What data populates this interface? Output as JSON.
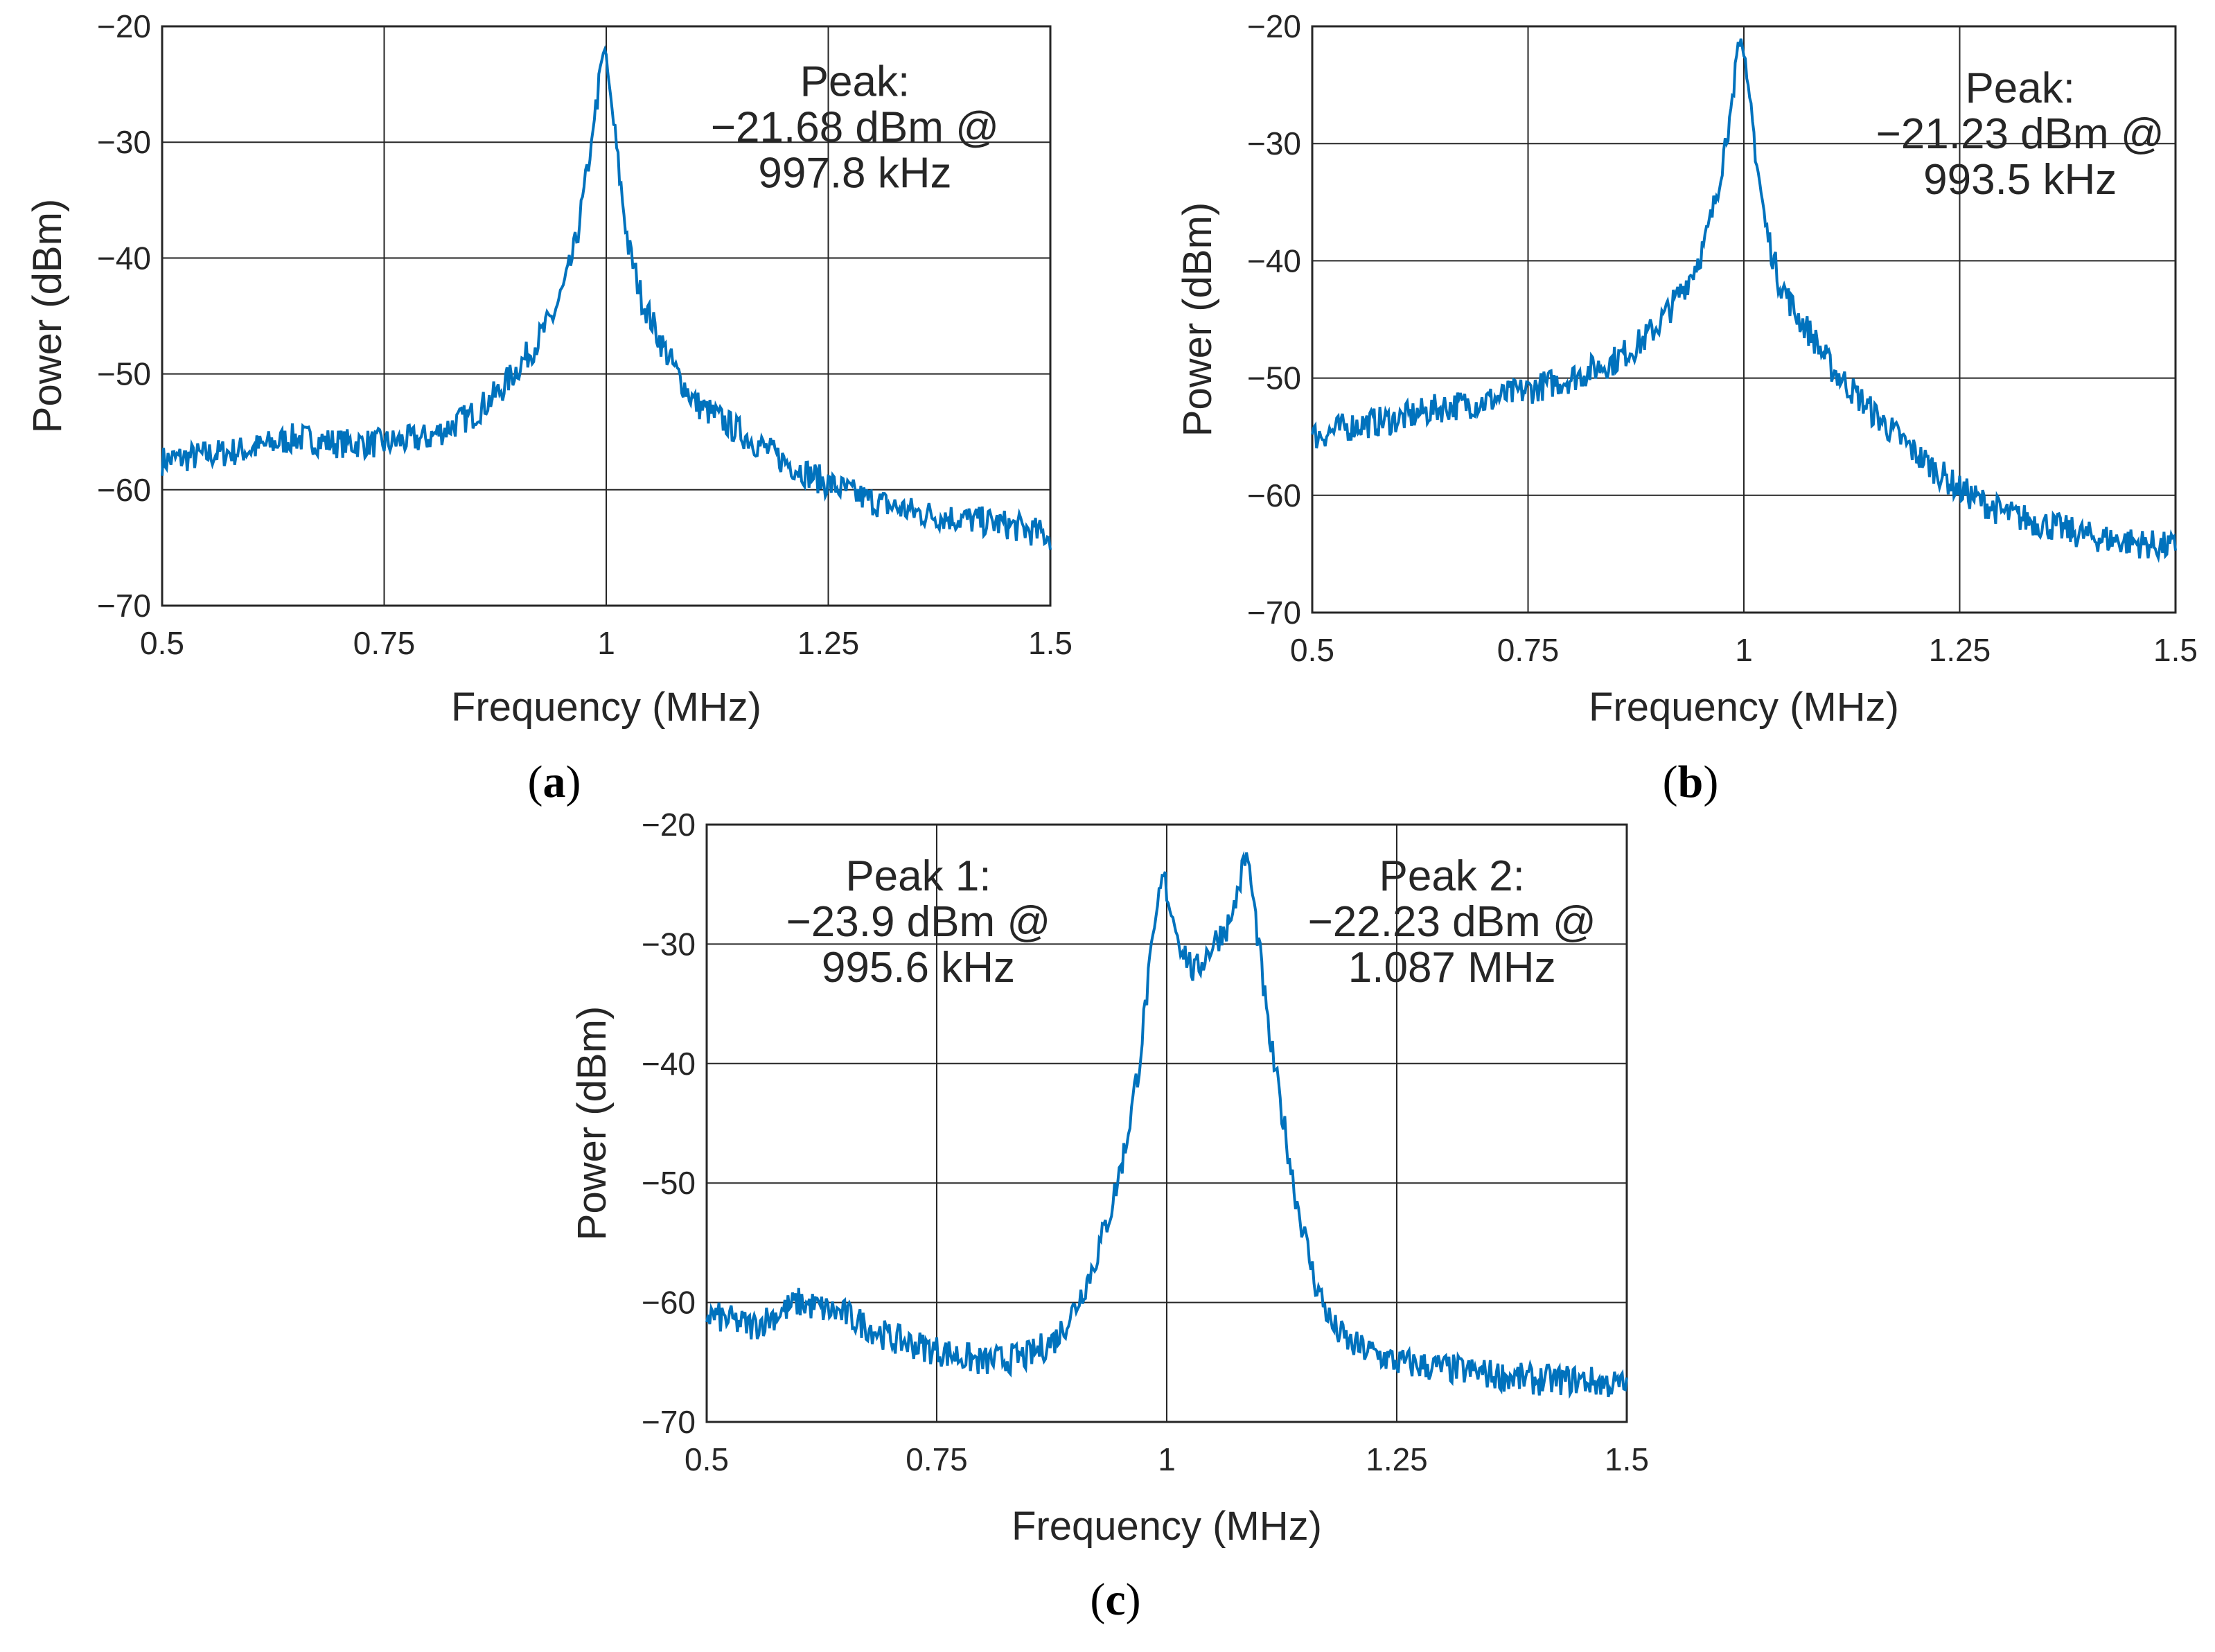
{
  "colors": {
    "series": "#0072BD",
    "grid": "#262626",
    "axis": "#262626"
  },
  "chart_data": [
    {
      "id": "a",
      "type": "line",
      "caption": "a",
      "xlabel": "Frequency (MHz)",
      "ylabel": "Power (dBm)",
      "xlim": [
        0.5,
        1.5
      ],
      "ylim": [
        -70,
        -20
      ],
      "xticks": [
        0.5,
        0.75,
        1,
        1.25,
        1.5
      ],
      "xticklabels": [
        "0.5",
        "0.75",
        "1",
        "1.25",
        "1.5"
      ],
      "yticks": [
        -20,
        -30,
        -40,
        -50,
        -60,
        -70
      ],
      "yticklabels": [
        "−20",
        "−30",
        "−40",
        "−50",
        "−60",
        "−70"
      ],
      "grid": true,
      "annotation": [
        "Peak:",
        "−21.68 dBm @",
        "997.8 kHz"
      ],
      "annotation_anchor": [
        1.28,
        -26
      ],
      "series": [
        {
          "name": "spectrum",
          "x": [
            0.5,
            0.55,
            0.6,
            0.65,
            0.7,
            0.75,
            0.8,
            0.85,
            0.88,
            0.9,
            0.92,
            0.94,
            0.955,
            0.965,
            0.975,
            0.985,
            0.9978,
            1.005,
            1.015,
            1.025,
            1.04,
            1.06,
            1.08,
            1.1,
            1.15,
            1.2,
            1.25,
            1.3,
            1.35,
            1.4,
            1.45,
            1.5
          ],
          "values": [
            -57.5,
            -57.0,
            -56.5,
            -55.5,
            -56.0,
            -56.0,
            -55.5,
            -53.5,
            -51.5,
            -49.5,
            -47.5,
            -45.0,
            -42.0,
            -39.0,
            -34.5,
            -29.0,
            -21.68,
            -26.0,
            -33.0,
            -39.0,
            -43.5,
            -47.0,
            -50.0,
            -52.5,
            -55.0,
            -57.5,
            -59.5,
            -61.0,
            -62.0,
            -62.5,
            -63.0,
            -64.0
          ]
        }
      ]
    },
    {
      "id": "b",
      "type": "line",
      "caption": "b",
      "xlabel": "Frequency (MHz)",
      "ylabel": "Power (dBm)",
      "xlim": [
        0.5,
        1.5
      ],
      "ylim": [
        -70,
        -20
      ],
      "xticks": [
        0.5,
        0.75,
        1,
        1.25,
        1.5
      ],
      "xticklabels": [
        "0.5",
        "0.75",
        "1",
        "1.25",
        "1.5"
      ],
      "yticks": [
        -20,
        -30,
        -40,
        -50,
        -60,
        -70
      ],
      "yticklabels": [
        "−20",
        "−30",
        "−40",
        "−50",
        "−60",
        "−70"
      ],
      "grid": true,
      "annotation": [
        "Peak:",
        "−21.23 dBm @",
        "993.5 kHz"
      ],
      "annotation_anchor": [
        1.32,
        -26.5
      ],
      "series": [
        {
          "name": "spectrum",
          "x": [
            0.5,
            0.55,
            0.6,
            0.65,
            0.7,
            0.75,
            0.8,
            0.85,
            0.88,
            0.9,
            0.92,
            0.94,
            0.955,
            0.965,
            0.975,
            0.985,
            0.9935,
            1.005,
            1.015,
            1.025,
            1.04,
            1.06,
            1.08,
            1.1,
            1.15,
            1.2,
            1.25,
            1.3,
            1.35,
            1.4,
            1.45,
            1.5
          ],
          "values": [
            -55.0,
            -54.0,
            -53.5,
            -52.5,
            -52.0,
            -51.0,
            -50.0,
            -48.5,
            -47.0,
            -45.5,
            -43.5,
            -41.0,
            -38.5,
            -35.5,
            -31.5,
            -27.0,
            -21.23,
            -25.0,
            -31.5,
            -37.0,
            -41.5,
            -44.5,
            -46.5,
            -49.0,
            -53.0,
            -56.5,
            -59.5,
            -61.5,
            -62.5,
            -63.5,
            -64.0,
            -64.5
          ]
        }
      ]
    },
    {
      "id": "c",
      "type": "line",
      "caption": "c",
      "xlabel": "Frequency (MHz)",
      "ylabel": "Power (dBm)",
      "xlim": [
        0.5,
        1.5
      ],
      "ylim": [
        -70,
        -20
      ],
      "xticks": [
        0.5,
        0.75,
        1,
        1.25,
        1.5
      ],
      "xticklabels": [
        "0.5",
        "0.75",
        "1",
        "1.25",
        "1.5"
      ],
      "yticks": [
        -20,
        -30,
        -40,
        -50,
        -60,
        -70
      ],
      "yticklabels": [
        "−20",
        "−30",
        "−40",
        "−50",
        "−60",
        "−70"
      ],
      "grid": true,
      "annotations": [
        {
          "lines": [
            "Peak 1:",
            "−23.9 dBm @",
            "995.6 kHz"
          ],
          "anchor": [
            0.73,
            -25.5
          ]
        },
        {
          "lines": [
            "Peak 2:",
            "−22.23 dBm @",
            "1.087 MHz"
          ],
          "anchor": [
            1.31,
            -25.5
          ]
        }
      ],
      "series": [
        {
          "name": "spectrum",
          "x": [
            0.5,
            0.55,
            0.6,
            0.65,
            0.7,
            0.75,
            0.8,
            0.85,
            0.88,
            0.9,
            0.92,
            0.94,
            0.955,
            0.97,
            0.98,
            0.9956,
            1.01,
            1.03,
            1.05,
            1.07,
            1.087,
            1.1,
            1.11,
            1.125,
            1.14,
            1.16,
            1.18,
            1.2,
            1.25,
            1.3,
            1.35,
            1.4,
            1.45,
            1.5
          ],
          "values": [
            -61.0,
            -62.0,
            -60.0,
            -61.0,
            -63.0,
            -64.0,
            -65.0,
            -64.5,
            -63.0,
            -60.5,
            -57.0,
            -52.0,
            -47.0,
            -40.0,
            -33.0,
            -23.9,
            -29.0,
            -32.5,
            -30.0,
            -28.0,
            -22.23,
            -30.0,
            -37.0,
            -44.0,
            -51.0,
            -58.0,
            -62.0,
            -63.5,
            -65.0,
            -65.5,
            -66.0,
            -66.5,
            -66.5,
            -67.0
          ]
        }
      ]
    }
  ]
}
